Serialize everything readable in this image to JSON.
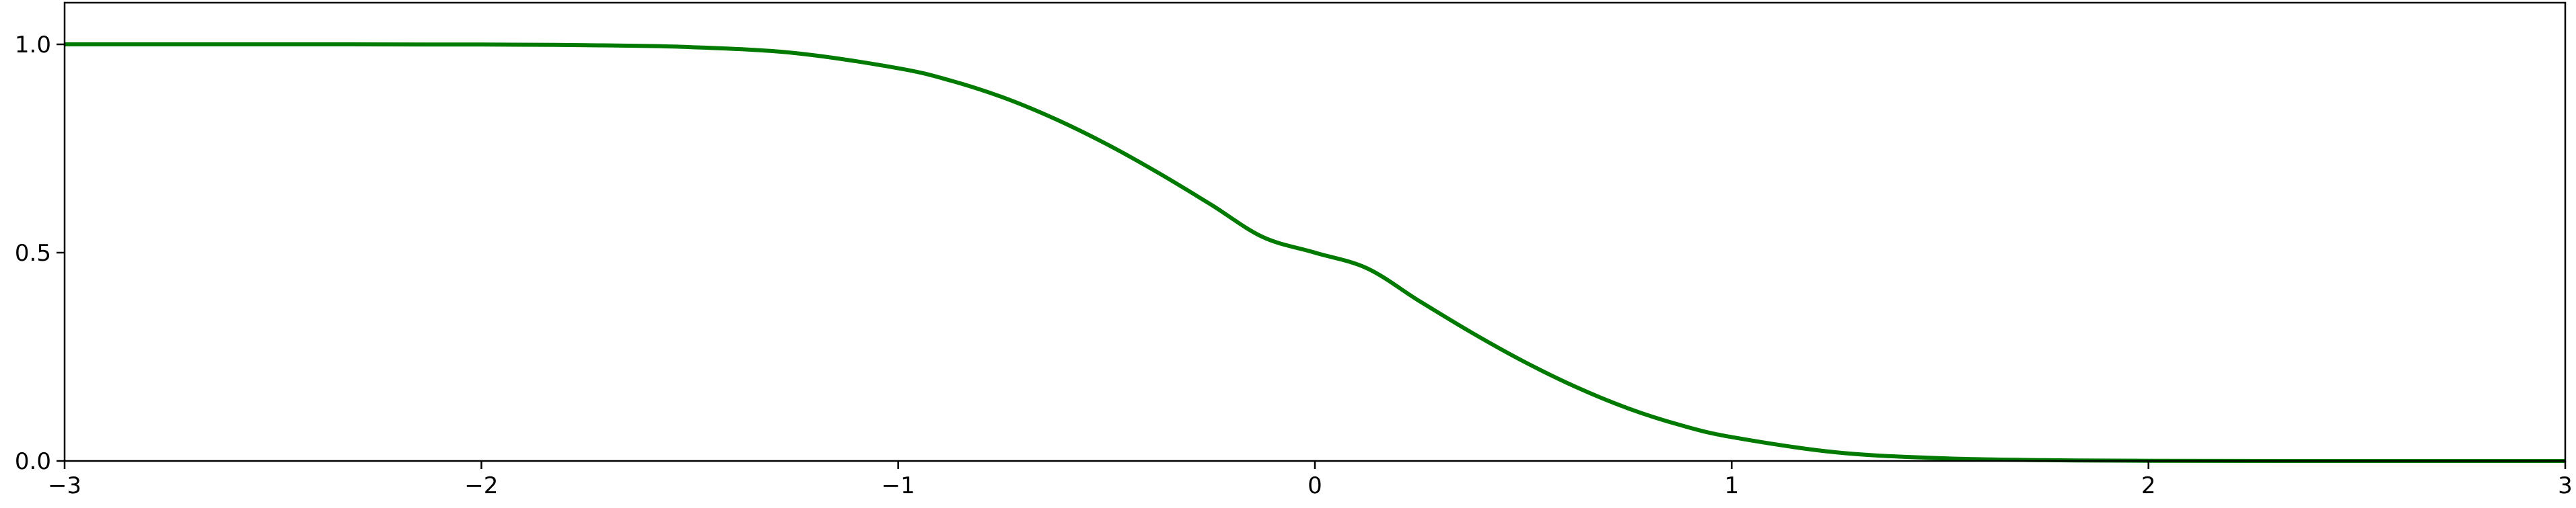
{
  "chart_data": {
    "type": "line",
    "title": "",
    "xlabel": "",
    "ylabel": "",
    "xlim": [
      -3,
      3
    ],
    "ylim": [
      0.0,
      1.1
    ],
    "grid": false,
    "legend": "none",
    "x_ticks": [
      {
        "value": -3,
        "label": "−3"
      },
      {
        "value": -2,
        "label": "−2"
      },
      {
        "value": -1,
        "label": "−1"
      },
      {
        "value": 0,
        "label": "0"
      },
      {
        "value": 1,
        "label": "1"
      },
      {
        "value": 2,
        "label": "2"
      },
      {
        "value": 3,
        "label": "3"
      }
    ],
    "y_ticks": [
      {
        "value": 0.0,
        "label": "0.0"
      },
      {
        "value": 0.5,
        "label": "0.5"
      },
      {
        "value": 1.0,
        "label": "1.0"
      }
    ],
    "series": [
      {
        "color": "#007a00",
        "x": [
          -3.0,
          -2.5,
          -2.0,
          -1.75,
          -1.5,
          -1.25,
          -1.0,
          -0.875,
          -0.75,
          -0.625,
          -0.5,
          -0.375,
          -0.25,
          -0.125,
          0.0,
          0.125,
          0.25,
          0.375,
          0.5,
          0.625,
          0.75,
          0.875,
          1.0,
          1.25,
          1.5,
          1.75,
          2.0,
          2.5,
          3.0
        ],
        "y": [
          1.0,
          1.0,
          0.9995,
          0.998,
          0.9934,
          0.9793,
          0.9427,
          0.9133,
          0.8732,
          0.8218,
          0.7607,
          0.6912,
          0.6158,
          0.5375,
          0.5,
          0.4625,
          0.3842,
          0.3088,
          0.2393,
          0.1782,
          0.1268,
          0.0867,
          0.0573,
          0.0207,
          0.0066,
          0.002,
          0.0005,
          0.0,
          0.0
        ]
      }
    ]
  }
}
